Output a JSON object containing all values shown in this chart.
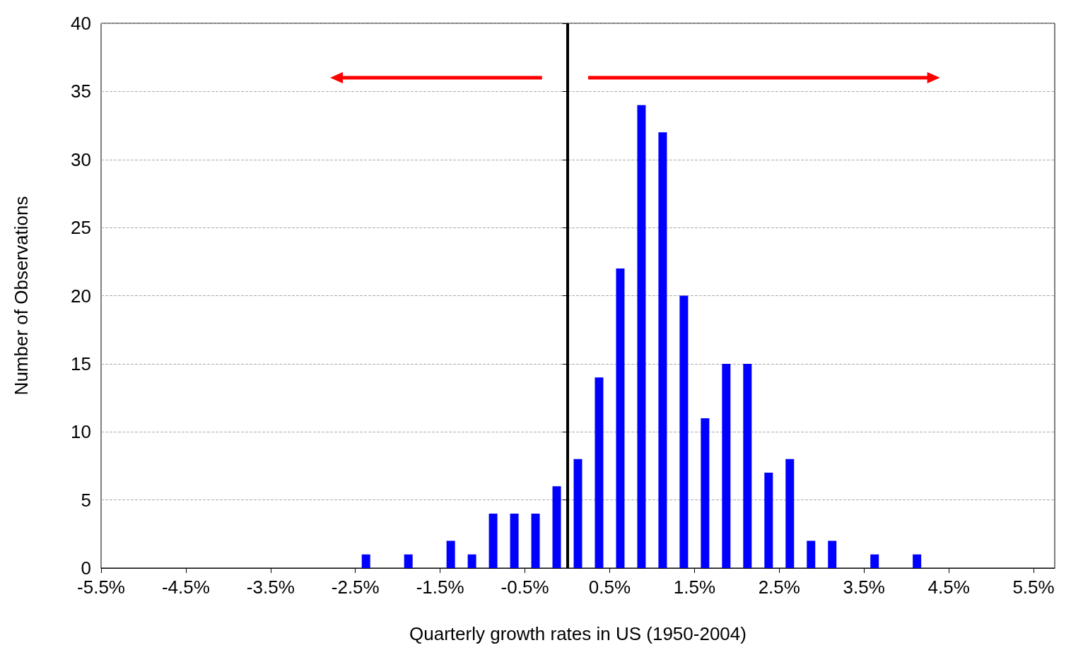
{
  "chart_data": {
    "type": "histogram",
    "xlabel": "Quarterly growth rates in US (1950-2004)",
    "ylabel": "Number of Observations",
    "bins": [
      -2.5,
      -2.25,
      -2.0,
      -1.75,
      -1.5,
      -1.25,
      -1.0,
      -0.75,
      -0.5,
      -0.25,
      0,
      0.25,
      0.5,
      0.75,
      1.0,
      1.25,
      1.5,
      1.75,
      2.0,
      2.25,
      2.5,
      2.75,
      3.0,
      3.25,
      3.5,
      3.75,
      4.0,
      4.25
    ],
    "values": [
      1,
      0,
      1,
      0,
      2,
      1,
      4,
      4,
      4,
      6,
      8,
      14,
      22,
      34,
      32,
      20,
      11,
      15,
      15,
      7,
      8,
      2,
      2,
      0,
      1,
      0,
      1
    ],
    "color": "#0000ff",
    "xlim": [
      -5.5,
      5.75
    ],
    "xticks": [
      {
        "value": -5.5,
        "label": "-5.5%"
      },
      {
        "value": -4.5,
        "label": "-4.5%"
      },
      {
        "value": -3.5,
        "label": "-3.5%"
      },
      {
        "value": -2.5,
        "label": "-2.5%"
      },
      {
        "value": -1.5,
        "label": "-1.5%"
      },
      {
        "value": -0.5,
        "label": "-0.5%"
      },
      {
        "value": 0.5,
        "label": "0.5%"
      },
      {
        "value": 1.5,
        "label": "1.5%"
      },
      {
        "value": 2.5,
        "label": "2.5%"
      },
      {
        "value": 3.5,
        "label": "3.5%"
      },
      {
        "value": 4.5,
        "label": "4.5%"
      },
      {
        "value": 5.5,
        "label": "5.5%"
      }
    ],
    "ylim": [
      0,
      40
    ],
    "yticks": [
      0,
      5,
      10,
      15,
      20,
      25,
      30,
      35,
      40
    ],
    "grid": "y",
    "ref_lines": [
      {
        "axis": "x",
        "value": 0,
        "color": "#000000"
      }
    ]
  }
}
